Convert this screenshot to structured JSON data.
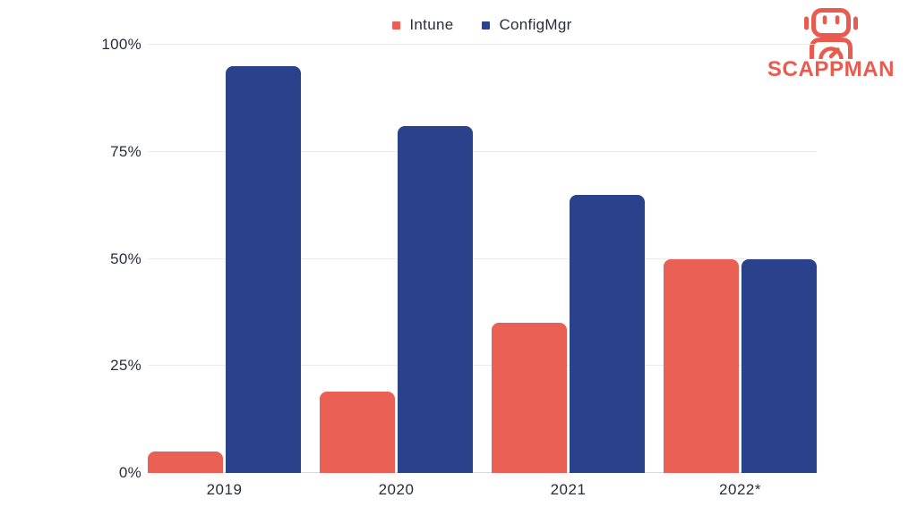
{
  "brand": {
    "name": "SCAPPMAN",
    "color": "#EA5B4F",
    "icon": "robot-icon"
  },
  "colors": {
    "intune": "#EA6054",
    "configmgr": "#2A428B",
    "gridline": "#ECECEE",
    "baseline": "#D9D9DE",
    "text": "#2B2D3A"
  },
  "chart_data": {
    "type": "bar",
    "title": "",
    "xlabel": "",
    "ylabel": "",
    "categories": [
      "2019",
      "2020",
      "2021",
      "2022*"
    ],
    "series": [
      {
        "name": "Intune",
        "color": "#EA6054",
        "values": [
          5,
          19,
          35,
          50
        ]
      },
      {
        "name": "ConfigMgr",
        "color": "#2A428B",
        "values": [
          95,
          81,
          65,
          50
        ]
      }
    ],
    "ylim": [
      0,
      100
    ],
    "ytick_values": [
      0,
      25,
      50,
      75,
      100
    ],
    "ytick_labels": [
      "0%",
      "25%",
      "50%",
      "75%",
      "100%"
    ],
    "grid": true,
    "legend_position": "top-center"
  }
}
